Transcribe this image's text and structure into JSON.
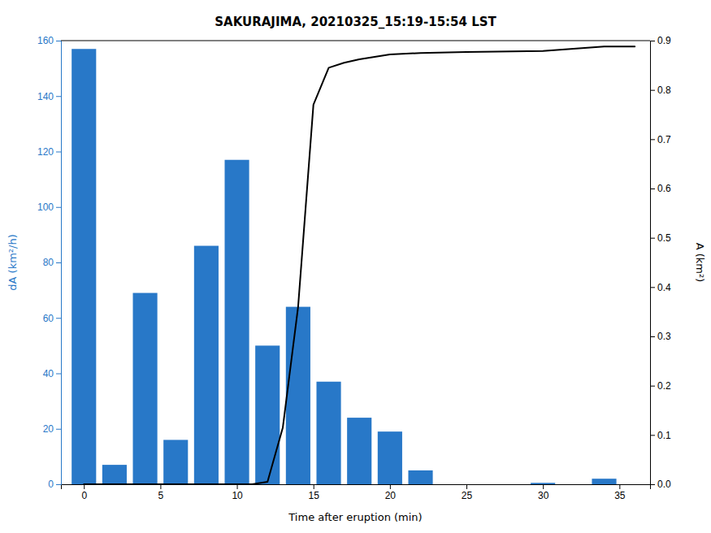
{
  "chart_data": {
    "type": "bar",
    "title": "SAKURAJIMA, 20210325_15:19-15:54 LST",
    "xlabel": "Time after eruption (min)",
    "ylabel": "dA (km²/h)",
    "y2label": "A (km²)",
    "xlim": [
      -1.5,
      37
    ],
    "xticks": [
      0,
      5,
      10,
      15,
      20,
      25,
      30,
      35
    ],
    "ylim": [
      0,
      160
    ],
    "yticks": [
      0,
      20,
      40,
      60,
      80,
      100,
      120,
      140,
      160
    ],
    "y2lim": [
      0,
      0.9
    ],
    "y2ticks": [
      {
        "value": 0,
        "label": "0.0"
      },
      0.1,
      0.2,
      0.3,
      0.4,
      0.5,
      0.6,
      0.7,
      0.8,
      0.9
    ],
    "series": [
      {
        "type": "bar",
        "color": "#2878c8",
        "x": [
          0,
          2,
          4,
          6,
          8,
          10,
          12,
          14,
          16,
          18,
          20,
          22,
          30,
          34
        ],
        "values": [
          157,
          7,
          69,
          16,
          86,
          117,
          50,
          64,
          37,
          24,
          19,
          5,
          0.5,
          2
        ]
      },
      {
        "type": "line",
        "color": "#000000",
        "axis": "y2",
        "x": [
          0,
          2,
          4,
          6,
          8,
          10,
          11,
          12,
          13,
          14,
          15,
          16,
          17,
          18,
          20,
          22,
          25,
          30,
          34,
          36
        ],
        "values": [
          0,
          0,
          0,
          0,
          0,
          0,
          0,
          0.005,
          0.115,
          0.36,
          0.77,
          0.845,
          0.855,
          0.862,
          0.872,
          0.875,
          0.877,
          0.879,
          0.888,
          0.888
        ]
      }
    ]
  }
}
